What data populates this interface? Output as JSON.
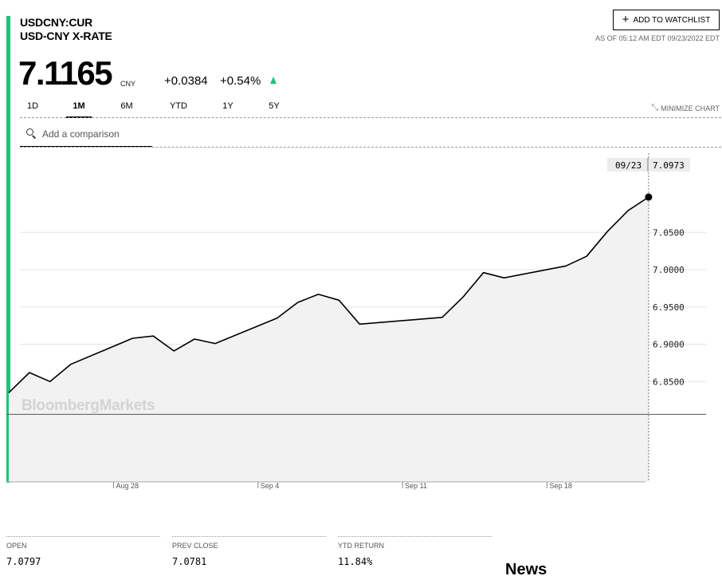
{
  "header": {
    "ticker": "USDCNY:CUR",
    "name": "USD-CNY X-RATE",
    "price": "7.1165",
    "currency": "CNY",
    "change": "+0.0384",
    "change_pct": "+0.54%",
    "watchlist_label": "ADD TO WATCHLIST",
    "as_of": "AS OF 05:12 AM EDT 09/23/2022 EDT"
  },
  "colors": {
    "accent": "#1dc37a",
    "line": "#000000",
    "fill": "#f2f2f2"
  },
  "tabs": [
    {
      "label": "1D",
      "active": false
    },
    {
      "label": "1M",
      "active": true
    },
    {
      "label": "6M",
      "active": false
    },
    {
      "label": "YTD",
      "active": false
    },
    {
      "label": "1Y",
      "active": false
    },
    {
      "label": "5Y",
      "active": false
    }
  ],
  "minimize_label": "MINIMIZE CHART",
  "compare": {
    "placeholder": "Add a comparison"
  },
  "chart_data": {
    "type": "area",
    "watermark": "BloombergMarkets",
    "tooltip": {
      "date": "09/23",
      "value": "7.0973"
    },
    "yticks": [
      "7.0500",
      "7.0000",
      "6.9500",
      "6.9000",
      "6.8500"
    ],
    "ytick_values": [
      7.05,
      7.0,
      6.95,
      6.9,
      6.85
    ],
    "xticks": [
      {
        "label": "Aug 28",
        "day": 5
      },
      {
        "label": "Sep 4",
        "day": 12
      },
      {
        "label": "Sep 11",
        "day": 19
      },
      {
        "label": "Sep 18",
        "day": 26
      }
    ],
    "x_axis_start": "Aug 23",
    "reference_value": 6.806,
    "points": [
      [
        0,
        6.835
      ],
      [
        1,
        6.862
      ],
      [
        2,
        6.85
      ],
      [
        3,
        6.873
      ],
      [
        6,
        6.908
      ],
      [
        7,
        6.911
      ],
      [
        8,
        6.891
      ],
      [
        9,
        6.907
      ],
      [
        10,
        6.901
      ],
      [
        13,
        6.935
      ],
      [
        14,
        6.956
      ],
      [
        15,
        6.967
      ],
      [
        16,
        6.959
      ],
      [
        17,
        6.927
      ],
      [
        21,
        6.936
      ],
      [
        22,
        6.963
      ],
      [
        23,
        6.996
      ],
      [
        24,
        6.989
      ],
      [
        27,
        7.005
      ],
      [
        28,
        7.018
      ],
      [
        29,
        7.051
      ],
      [
        30,
        7.079
      ],
      [
        31,
        7.0973
      ]
    ]
  },
  "stats": [
    {
      "label": "OPEN",
      "value": "7.0797"
    },
    {
      "label": "PREV CLOSE",
      "value": "7.0781"
    },
    {
      "label": "YTD RETURN",
      "value": "11.84%"
    }
  ],
  "news_heading": "News"
}
